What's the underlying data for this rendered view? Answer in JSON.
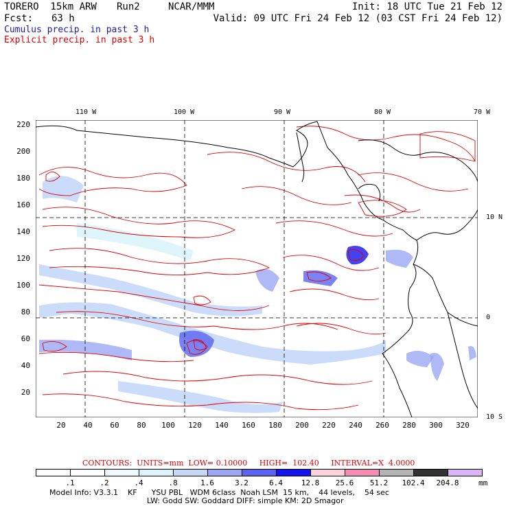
{
  "header": {
    "model": "TORERO  15km ARW",
    "run": "Run2",
    "org": "NCAR/MMM",
    "init": "Init: 18 UTC Tue 21 Feb 12",
    "fcst_label": "Fcst:",
    "fcst_value": "63 h",
    "valid": "Valid: 09 UTC Fri 24 Feb 12 (03 CST Fri 24 Feb 12)",
    "cumulus": "Cumulus precip. in past 3 h",
    "explicit": "Explicit precip. in past 3 h"
  },
  "colors": {
    "cumulus_text": "#1a1aa6",
    "explicit_text": "#e00000",
    "contour": "#e00000",
    "coast": "#000000"
  },
  "top_lon": [
    "110 W",
    "100 W",
    "90 W",
    "80 W",
    "70 W"
  ],
  "right_lat": [
    "10 N",
    "0",
    "10 S"
  ],
  "y_ticks": [
    "220",
    "200",
    "180",
    "160",
    "140",
    "120",
    "100",
    "80",
    "60",
    "40",
    "20"
  ],
  "x_ticks": [
    "20",
    "40",
    "60",
    "80",
    "100",
    "120",
    "140",
    "160",
    "180",
    "200",
    "220",
    "240",
    "260",
    "280",
    "300",
    "320"
  ],
  "contour_line": {
    "label": "CONTOURS:  UNITS=mm  LOW= 0.10000     HIGH=  102.40     INTERVAL=X  4.0000"
  },
  "legend": {
    "unit": "mm",
    "values": [
      ".1",
      ".2",
      ".4",
      ".8",
      "1.6",
      "3.2",
      "6.4",
      "12.8",
      "25.6",
      "51.2",
      "102.4",
      "204.8"
    ],
    "colors": [
      "#ffffff",
      "#ffffff",
      "#f0fafe",
      "#dcf4fc",
      "#c4d8f8",
      "#9aa8f4",
      "#5a64f0",
      "#1414f0",
      "#ffd2dc",
      "#f58cb4",
      "#b4b4b4",
      "#323232",
      "#dcb4fa"
    ]
  },
  "model_info": {
    "line1": "Model Info: V3.3.1    KF      YSU PBL   WDM 6class  Noah LSM  15 km,    44 levels,    54 sec",
    "line2": "LW: Godd SW: Goddard DIFF: simple KM: 2D Smagor"
  }
}
